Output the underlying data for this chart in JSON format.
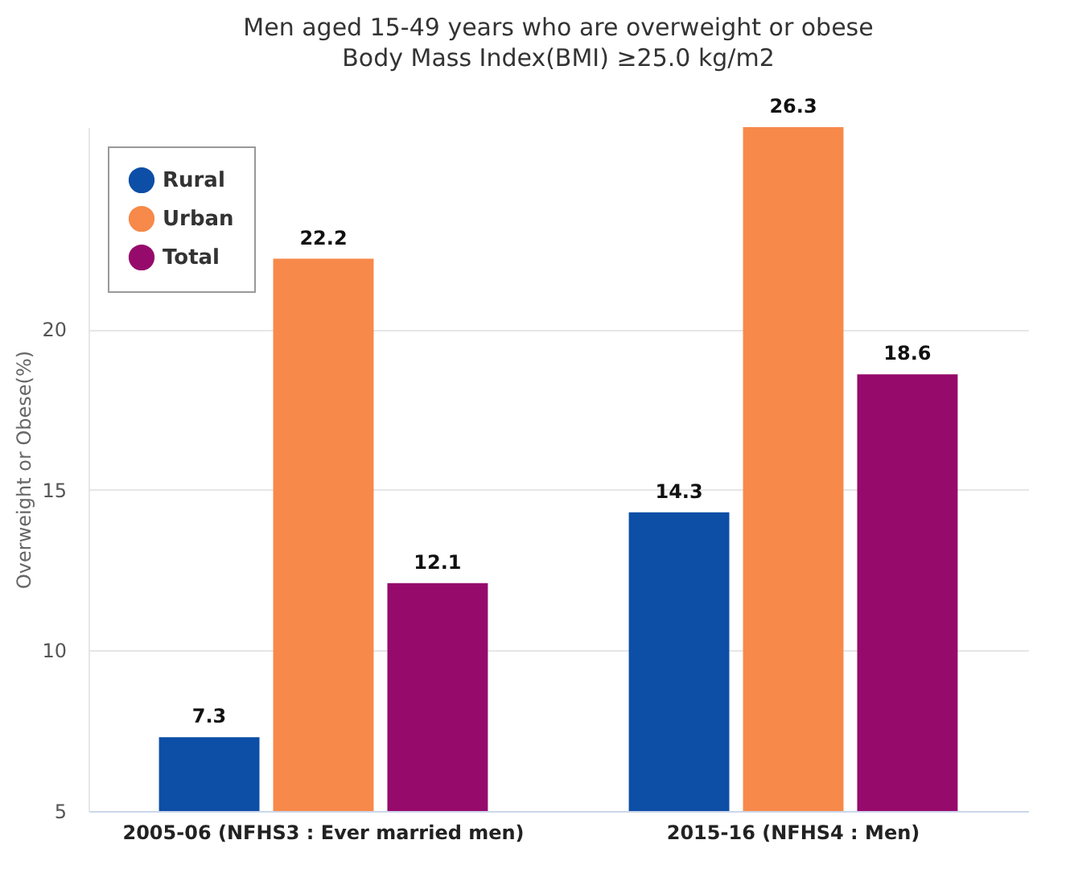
{
  "chart_data": {
    "type": "bar",
    "title": "Men aged 15-49 years who are overweight or obese",
    "subtitle": "Body Mass Index(BMI) ≥25.0 kg/m2",
    "ylabel": "Overweight or Obese(%)",
    "categories": [
      "2005-06 (NFHS3 : Ever married men)",
      "2015-16 (NFHS4 : Men)"
    ],
    "series": [
      {
        "name": "Rural",
        "color": "#0d4ea6",
        "values": [
          7.3,
          14.3
        ]
      },
      {
        "name": "Urban",
        "color": "#f7894a",
        "values": [
          22.2,
          26.3
        ]
      },
      {
        "name": "Total",
        "color": "#960a6b",
        "values": [
          12.1,
          18.6
        ]
      }
    ],
    "ylim": [
      5,
      26.3
    ],
    "yticks": [
      5,
      10,
      15,
      20
    ],
    "grid": "y",
    "legend": "top left",
    "data_labels": true
  }
}
